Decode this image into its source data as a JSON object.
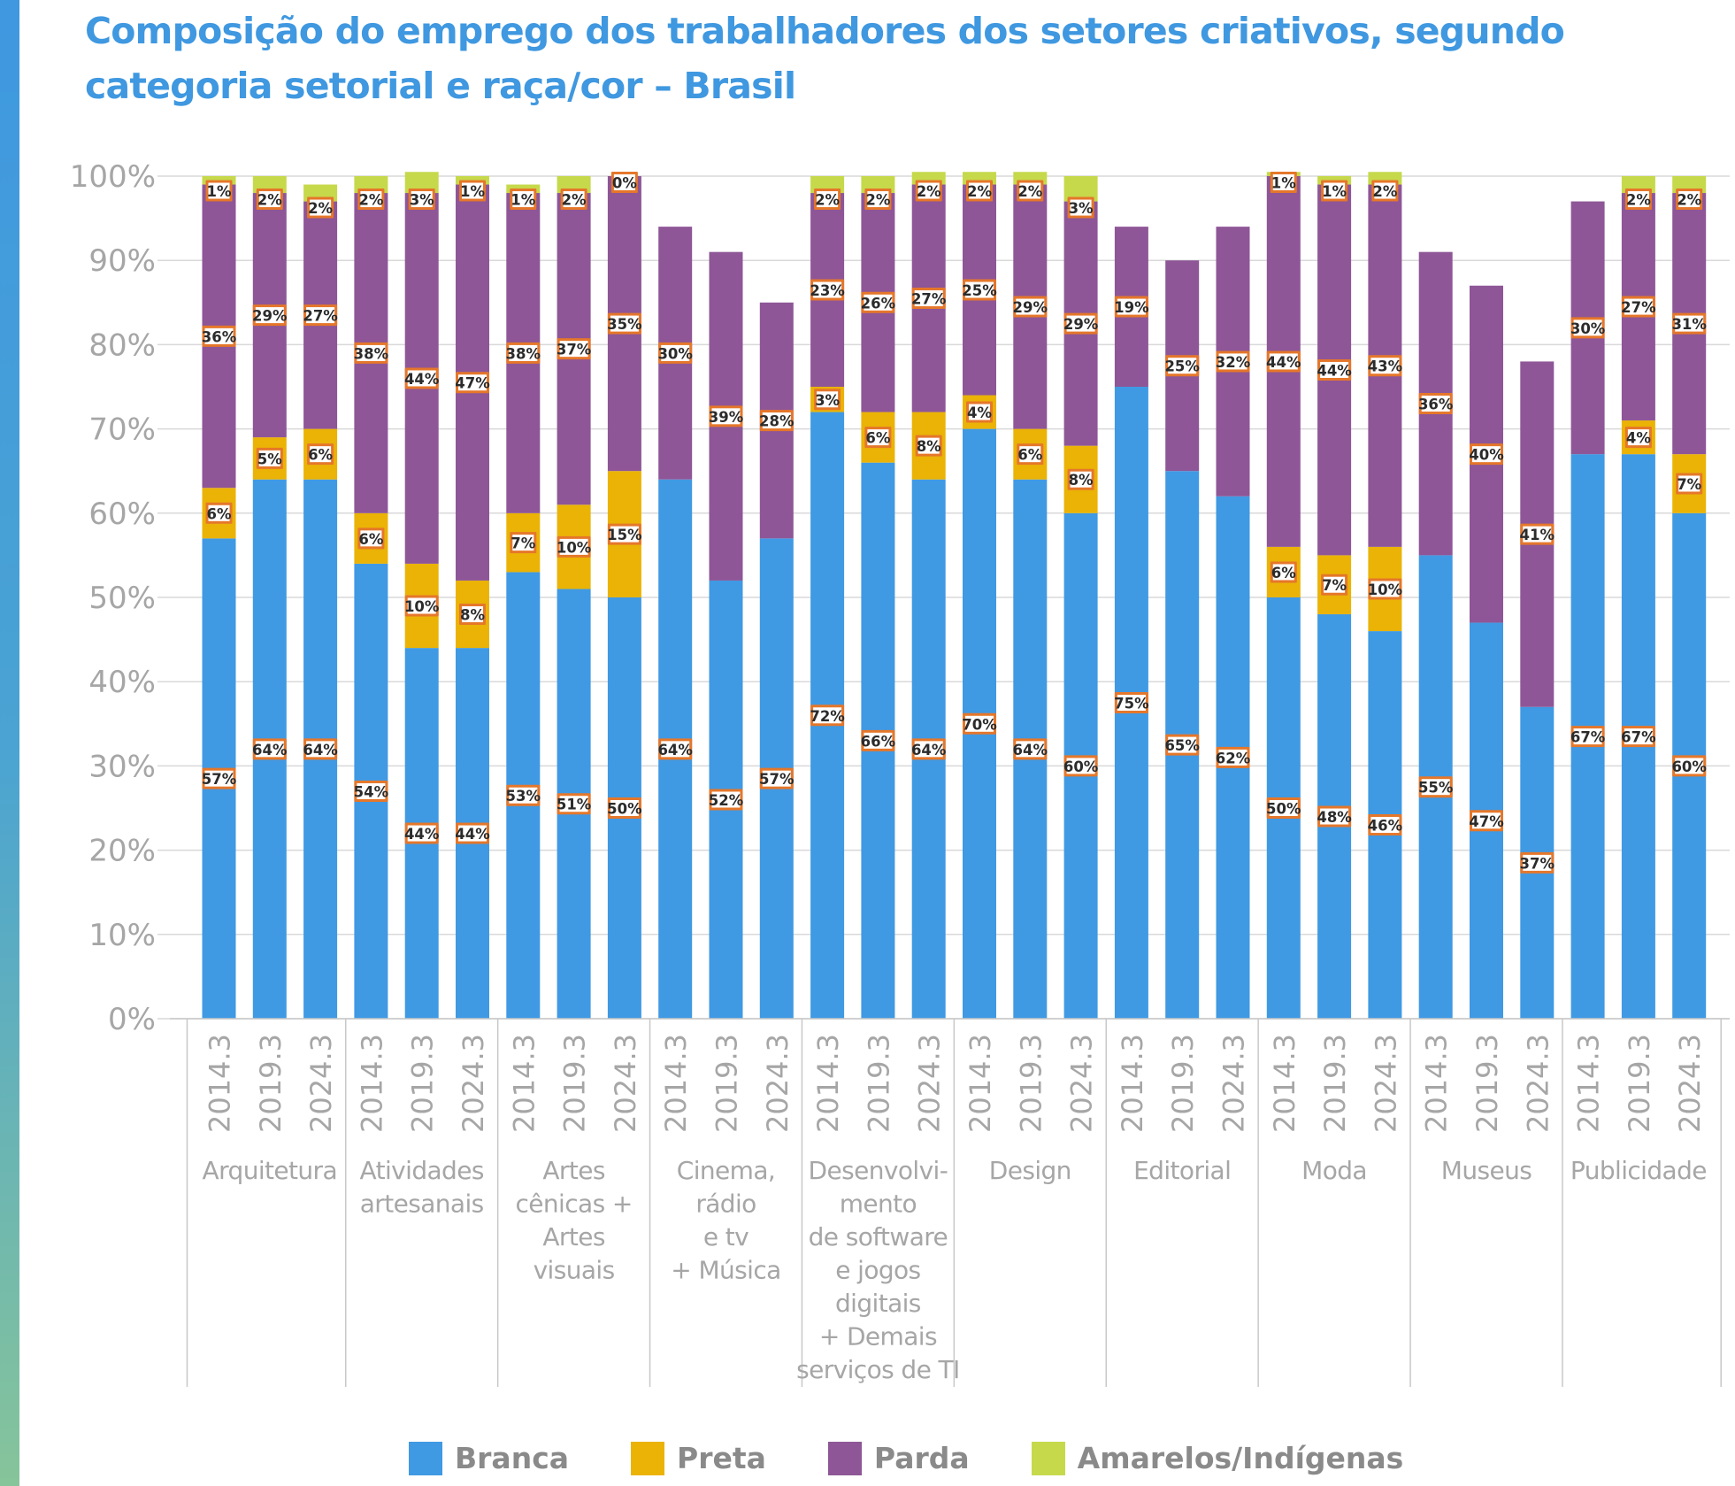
{
  "title": "Composição do emprego dos trabalhadores dos setores criativos, segundo categoria setorial e raça/cor – Brasil",
  "chart_data": {
    "type": "bar",
    "stacked": true,
    "ylim": [
      0,
      100
    ],
    "y_ticks": [
      "0%",
      "10%",
      "20%",
      "30%",
      "40%",
      "50%",
      "60%",
      "70%",
      "80%",
      "90%",
      "100%"
    ],
    "periods": [
      "2014.3",
      "2019.3",
      "2024.3"
    ],
    "groups": [
      {
        "label": "Arquitetura",
        "label_lines": [
          "Arquitetura"
        ]
      },
      {
        "label": "Atividades artesanais",
        "label_lines": [
          "Atividades",
          "artesanais"
        ]
      },
      {
        "label": "Artes cênicas + Artes visuais",
        "label_lines": [
          "Artes",
          "cênicas +",
          "Artes",
          "visuais"
        ]
      },
      {
        "label": "Cinema, rádio e tv + Música",
        "label_lines": [
          "Cinema,",
          "rádio",
          "e tv",
          "+ Música"
        ]
      },
      {
        "label": "Desenvolvimento de software e jogos digitais + Demais serviços de TI",
        "label_lines": [
          "Desenvolvi-",
          "mento",
          "de software",
          "e jogos",
          "digitais",
          "+ Demais",
          "serviços de TI"
        ]
      },
      {
        "label": "Design",
        "label_lines": [
          "Design"
        ]
      },
      {
        "label": "Editorial",
        "label_lines": [
          "Editorial"
        ]
      },
      {
        "label": "Moda",
        "label_lines": [
          "Moda"
        ]
      },
      {
        "label": "Museus",
        "label_lines": [
          "Museus"
        ]
      },
      {
        "label": "Publicidade",
        "label_lines": [
          "Publicidade"
        ]
      }
    ],
    "series": [
      {
        "name": "Branca",
        "color": "#4099e3",
        "values": [
          57,
          64,
          64,
          54,
          44,
          44,
          53,
          51,
          50,
          64,
          52,
          57,
          72,
          66,
          64,
          70,
          64,
          60,
          75,
          65,
          62,
          50,
          48,
          46,
          55,
          47,
          37,
          67,
          67,
          60
        ]
      },
      {
        "name": "Preta",
        "color": "#eab305",
        "values": [
          6,
          5,
          6,
          6,
          10,
          8,
          7,
          10,
          15,
          null,
          null,
          null,
          3,
          6,
          8,
          4,
          6,
          8,
          null,
          null,
          null,
          6,
          7,
          10,
          null,
          null,
          null,
          null,
          4,
          7
        ]
      },
      {
        "name": "Parda",
        "color": "#8e5697",
        "values": [
          36,
          29,
          27,
          38,
          44,
          47,
          38,
          37,
          35,
          30,
          39,
          28,
          23,
          26,
          27,
          25,
          29,
          29,
          19,
          25,
          32,
          44,
          44,
          43,
          36,
          40,
          41,
          30,
          27,
          31
        ]
      },
      {
        "name": "Amarelos/Indígenas",
        "color": "#c6d94b",
        "values": [
          1,
          2,
          2,
          2,
          3,
          1,
          1,
          2,
          0,
          null,
          null,
          null,
          2,
          2,
          2,
          2,
          2,
          3,
          null,
          null,
          null,
          1,
          1,
          2,
          null,
          null,
          null,
          null,
          2,
          2
        ]
      }
    ],
    "legend": [
      "Branca",
      "Preta",
      "Parda",
      "Amarelos/Indígenas"
    ],
    "legend_position": "bottom",
    "grid": true,
    "label_badge_color": "#e5772a"
  }
}
